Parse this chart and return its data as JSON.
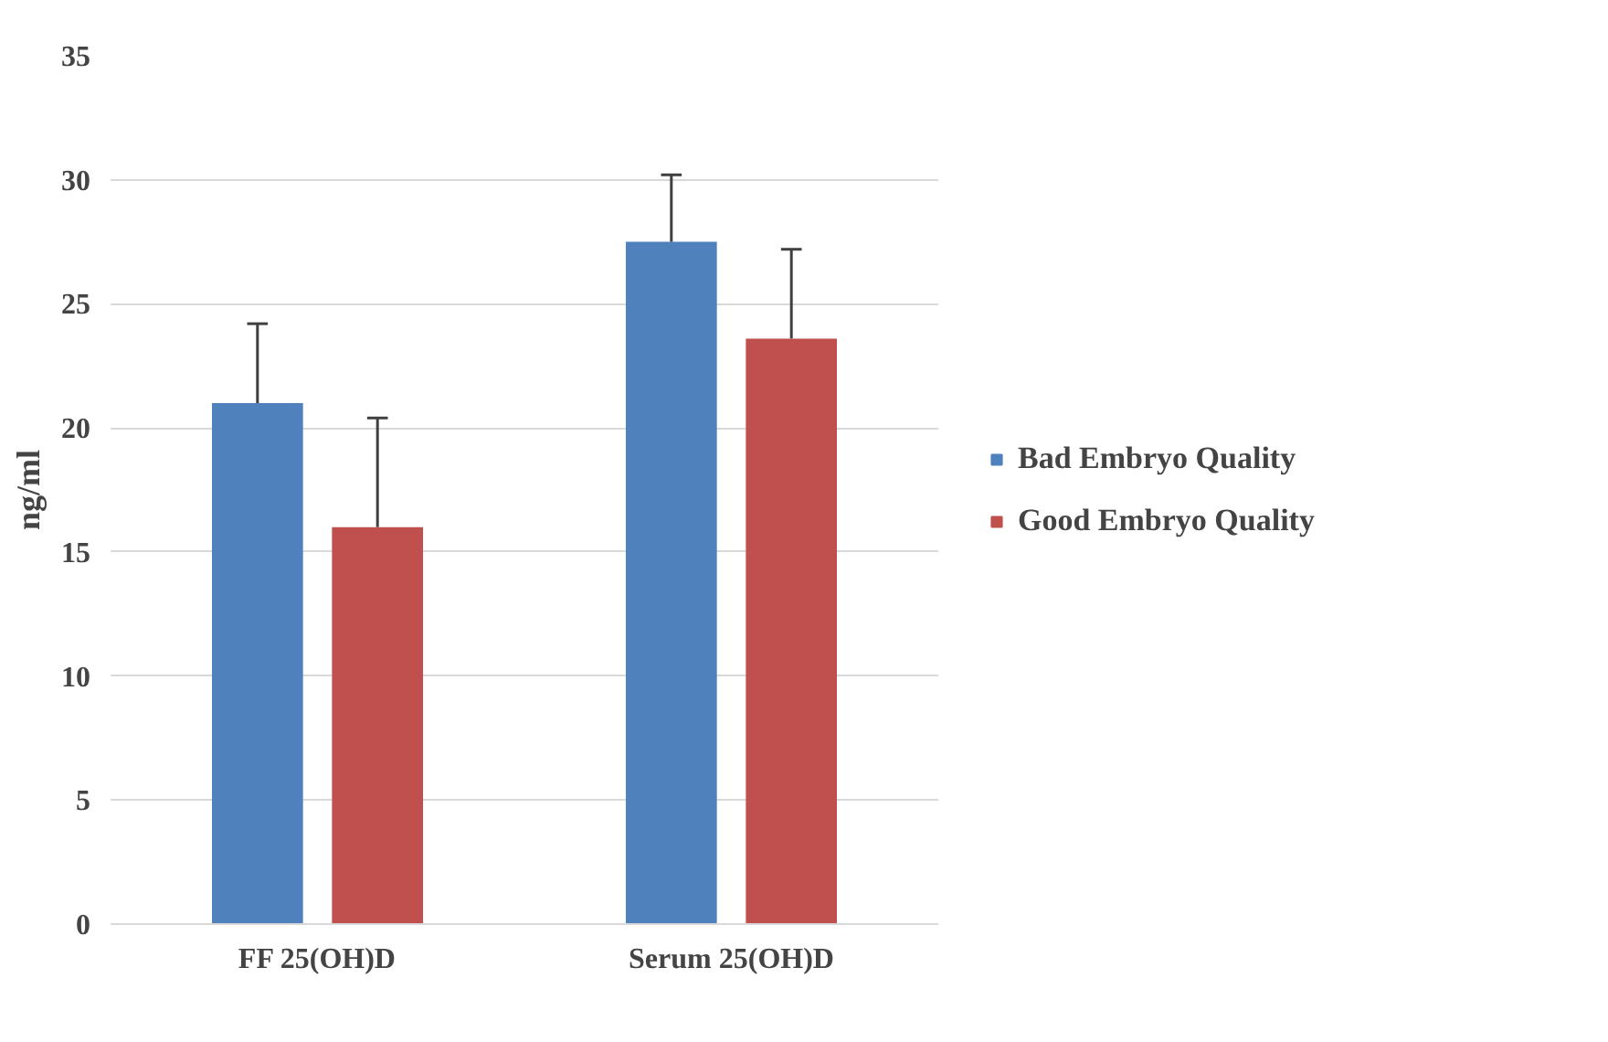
{
  "chart_data": {
    "type": "bar",
    "ylabel": "ng/ml",
    "categories": [
      "FF 25(OH)D",
      "Serum 25(OH)D"
    ],
    "series": [
      {
        "name": "Bad Embryo Quality",
        "color": "#4f81bd",
        "values": [
          21.0,
          27.5
        ],
        "errors": [
          [
            21.0,
            24.2
          ],
          [
            27.5,
            30.2
          ]
        ]
      },
      {
        "name": "Good Embryo Quality",
        "color": "#c0504d",
        "values": [
          16.0,
          23.6
        ],
        "errors": [
          [
            16.0,
            20.4
          ],
          [
            23.6,
            27.2
          ]
        ]
      }
    ],
    "ylim": [
      0,
      35
    ],
    "yticks": [
      0,
      5,
      10,
      15,
      20,
      25,
      30,
      35
    ],
    "grid": "y",
    "legend": "right"
  }
}
